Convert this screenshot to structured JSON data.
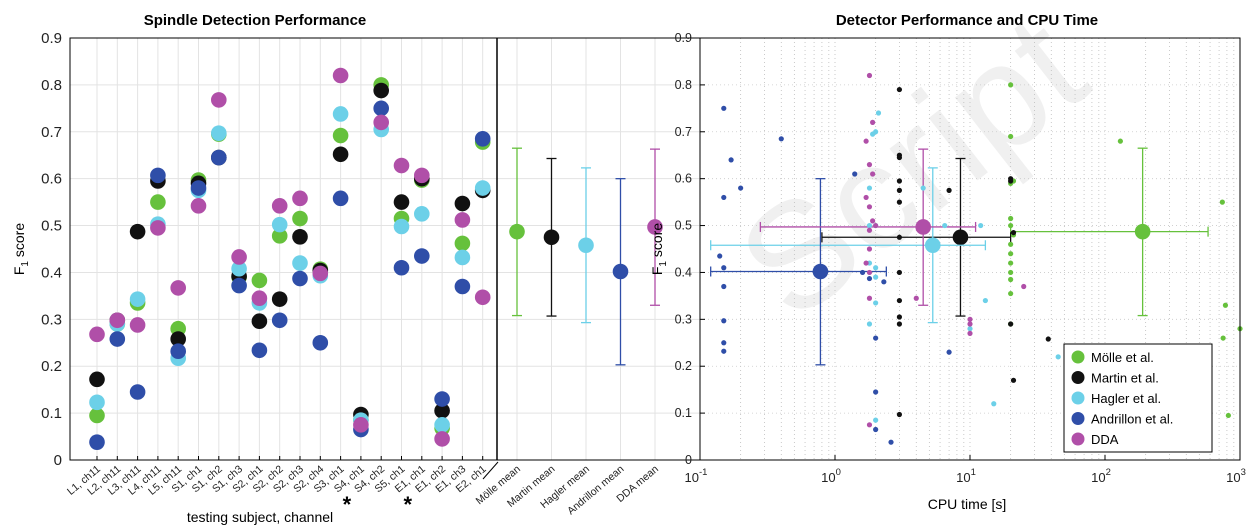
{
  "colors": {
    "molle": "#66c13c",
    "martin": "#111111",
    "hagler": "#6cd0e8",
    "andrillon": "#2f4ea8",
    "dda": "#b04fa8"
  },
  "left": {
    "title": "Spindle Detection Performance",
    "ylabel_main": "F",
    "ylabel_sub": "1",
    "ylabel_rest": " score",
    "xlabel": "testing subject, channel",
    "yticks": [
      "0",
      "0.1",
      "0.2",
      "0.3",
      "0.4",
      "0.5",
      "0.6",
      "0.7",
      "0.8",
      "0.9"
    ],
    "star": "*"
  },
  "right": {
    "title": "Detector Performance and CPU Time",
    "ylabel_main": "F",
    "ylabel_sub": "1",
    "ylabel_rest": " score",
    "xlabel": "CPU time [s]",
    "yticks": [
      "0",
      "0.1",
      "0.2",
      "0.3",
      "0.4",
      "0.5",
      "0.6",
      "0.7",
      "0.8",
      "0.9"
    ],
    "xticks": [
      {
        "base": "10",
        "exp": "-1"
      },
      {
        "base": "10",
        "exp": "0"
      },
      {
        "base": "10",
        "exp": "1"
      },
      {
        "base": "10",
        "exp": "2"
      },
      {
        "base": "10",
        "exp": "3"
      }
    ],
    "legend": [
      "Mölle et al.",
      "Martin et al.",
      "Hagler et al.",
      "Andrillon et al.",
      "DDA"
    ]
  },
  "chart_data": [
    {
      "type": "scatter",
      "title": "Spindle Detection Performance",
      "xlabel": "testing subject, channel",
      "ylabel": "F1 score",
      "ylim": [
        0,
        0.9
      ],
      "grid": true,
      "categories": [
        "L1, ch11",
        "L2, ch11",
        "L3, ch11",
        "L4, ch11",
        "L5, ch11",
        "S1, ch1",
        "S1, ch2",
        "S1, ch3",
        "S2, ch1",
        "S2, ch2",
        "S2, ch3",
        "S2, ch4",
        "S3, ch1",
        "S4, ch1",
        "S4, ch2",
        "S5, ch1",
        "E1, ch1",
        "E1, ch2",
        "E1, ch3",
        "E2, ch1"
      ],
      "starred_categories": [
        "S4, ch1",
        "E1, ch1"
      ],
      "series": [
        {
          "name": "Mölle et al.",
          "values": [
            0.095,
            0.29,
            0.335,
            0.55,
            0.28,
            0.597,
            0.695,
            0.39,
            0.383,
            0.478,
            0.515,
            0.407,
            0.692,
            0.085,
            0.8,
            0.515,
            0.597,
            0.068,
            0.462,
            0.678
          ]
        },
        {
          "name": "Martin et al.",
          "values": [
            0.172,
            0.298,
            0.487,
            0.595,
            0.258,
            0.59,
            0.645,
            0.392,
            0.296,
            0.343,
            0.476,
            0.404,
            0.652,
            0.097,
            0.788,
            0.55,
            0.6,
            0.105,
            0.547,
            0.575
          ]
        },
        {
          "name": "Hagler et al.",
          "values": [
            0.123,
            0.29,
            0.343,
            0.503,
            0.217,
            0.575,
            0.697,
            0.408,
            0.335,
            0.502,
            0.42,
            0.393,
            0.738,
            0.085,
            0.705,
            0.498,
            0.525,
            0.075,
            0.432,
            0.58
          ]
        },
        {
          "name": "Andrillon et al.",
          "values": [
            0.038,
            0.258,
            0.145,
            0.607,
            0.232,
            0.58,
            0.645,
            0.372,
            0.234,
            0.298,
            0.387,
            0.25,
            0.558,
            0.065,
            0.75,
            0.41,
            0.435,
            0.13,
            0.37,
            0.685
          ]
        },
        {
          "name": "DDA",
          "values": [
            0.268,
            0.298,
            0.288,
            0.495,
            0.367,
            0.542,
            0.768,
            0.433,
            0.345,
            0.542,
            0.558,
            0.398,
            0.82,
            0.075,
            0.72,
            0.628,
            0.607,
            0.045,
            0.512,
            0.347
          ]
        }
      ],
      "means": {
        "categories": [
          "Mölle mean",
          "Martin mean",
          "Hagler mean",
          "Andrillon mean",
          "DDA mean"
        ],
        "mean": [
          0.487,
          0.475,
          0.458,
          0.402,
          0.497
        ],
        "low": [
          0.308,
          0.307,
          0.293,
          0.203,
          0.33
        ],
        "high": [
          0.665,
          0.643,
          0.623,
          0.6,
          0.663
        ]
      }
    },
    {
      "type": "scatter",
      "title": "Detector Performance and CPU Time",
      "xlabel": "CPU time [s]",
      "ylabel": "F1 score",
      "xscale": "log",
      "xlim": [
        0.1,
        1000
      ],
      "ylim": [
        0,
        0.9
      ],
      "grid": true,
      "legend_position": "bottom-right",
      "series": [
        {
          "name": "Mölle et al.",
          "points": [
            [
              20,
              0.8
            ],
            [
              20,
              0.69
            ],
            [
              20,
              0.59
            ],
            [
              21,
              0.595
            ],
            [
              20,
              0.515
            ],
            [
              20,
              0.5
            ],
            [
              21,
              0.48
            ],
            [
              20,
              0.46
            ],
            [
              20,
              0.44
            ],
            [
              20,
              0.42
            ],
            [
              20,
              0.4
            ],
            [
              20,
              0.385
            ],
            [
              20,
              0.355
            ],
            [
              20,
              0.29
            ],
            [
              130,
              0.68
            ],
            [
              740,
              0.55
            ],
            [
              780,
              0.33
            ],
            [
              750,
              0.26
            ],
            [
              820,
              0.095
            ],
            [
              1000,
              0.28
            ]
          ],
          "mean": {
            "x": 190,
            "y": 0.487,
            "xerr": [
              20,
              580
            ],
            "yerr": [
              0.308,
              0.665
            ]
          }
        },
        {
          "name": "Martin et al.",
          "points": [
            [
              3,
              0.79
            ],
            [
              3,
              0.65
            ],
            [
              3,
              0.645
            ],
            [
              3,
              0.595
            ],
            [
              3,
              0.575
            ],
            [
              3,
              0.55
            ],
            [
              3,
              0.475
            ],
            [
              3,
              0.4
            ],
            [
              3,
              0.34
            ],
            [
              3,
              0.305
            ],
            [
              3,
              0.29
            ],
            [
              7,
              0.575
            ],
            [
              20,
              0.595
            ],
            [
              21,
              0.485
            ],
            [
              20,
              0.29
            ],
            [
              21,
              0.17
            ],
            [
              38,
              0.258
            ],
            [
              3,
              0.097
            ],
            [
              20,
              0.6
            ]
          ],
          "mean": {
            "x": 8.5,
            "y": 0.475,
            "xerr": [
              0.8,
              20
            ],
            "yerr": [
              0.307,
              0.643
            ]
          }
        },
        {
          "name": "Hagler et al.",
          "points": [
            [
              2.1,
              0.74
            ],
            [
              2,
              0.7
            ],
            [
              1.9,
              0.695
            ],
            [
              1.8,
              0.58
            ],
            [
              1.8,
              0.5
            ],
            [
              2,
              0.5
            ],
            [
              1.8,
              0.42
            ],
            [
              2,
              0.41
            ],
            [
              2,
              0.39
            ],
            [
              2,
              0.335
            ],
            [
              1.8,
              0.29
            ],
            [
              4.5,
              0.58
            ],
            [
              12,
              0.5
            ],
            [
              13,
              0.34
            ],
            [
              15,
              0.12
            ],
            [
              2,
              0.085
            ],
            [
              6.5,
              0.5
            ],
            [
              45,
              0.22
            ],
            [
              10,
              0.28
            ]
          ],
          "mean": {
            "x": 5.3,
            "y": 0.458,
            "xerr": [
              0.12,
              13
            ],
            "yerr": [
              0.293,
              0.623
            ]
          }
        },
        {
          "name": "Andrillon et al.",
          "points": [
            [
              0.15,
              0.75
            ],
            [
              0.17,
              0.64
            ],
            [
              0.2,
              0.58
            ],
            [
              0.15,
              0.56
            ],
            [
              0.4,
              0.685
            ],
            [
              0.14,
              0.435
            ],
            [
              0.15,
              0.41
            ],
            [
              0.15,
              0.37
            ],
            [
              0.15,
              0.297
            ],
            [
              0.15,
              0.25
            ],
            [
              0.15,
              0.232
            ],
            [
              1.4,
              0.61
            ],
            [
              1.6,
              0.4
            ],
            [
              1.8,
              0.387
            ],
            [
              2,
              0.26
            ],
            [
              2,
              0.145
            ],
            [
              2.6,
              0.038
            ],
            [
              7,
              0.23
            ],
            [
              2,
              0.065
            ],
            [
              2.3,
              0.38
            ]
          ],
          "mean": {
            "x": 0.78,
            "y": 0.402,
            "xerr": [
              0.12,
              2.4
            ],
            "yerr": [
              0.203,
              0.6
            ]
          }
        },
        {
          "name": "DDA",
          "points": [
            [
              1.8,
              0.82
            ],
            [
              1.9,
              0.72
            ],
            [
              1.7,
              0.68
            ],
            [
              1.8,
              0.63
            ],
            [
              1.9,
              0.61
            ],
            [
              1.7,
              0.56
            ],
            [
              1.8,
              0.54
            ],
            [
              1.9,
              0.51
            ],
            [
              2,
              0.5
            ],
            [
              1.8,
              0.49
            ],
            [
              1.8,
              0.45
            ],
            [
              1.7,
              0.42
            ],
            [
              1.8,
              0.4
            ],
            [
              1.8,
              0.345
            ],
            [
              4,
              0.345
            ],
            [
              10,
              0.3
            ],
            [
              10,
              0.29
            ],
            [
              10,
              0.27
            ],
            [
              25,
              0.37
            ],
            [
              1.8,
              0.075
            ]
          ],
          "mean": {
            "x": 4.5,
            "y": 0.497,
            "xerr": [
              0.28,
              11
            ],
            "yerr": [
              0.33,
              0.663
            ]
          }
        }
      ]
    }
  ]
}
